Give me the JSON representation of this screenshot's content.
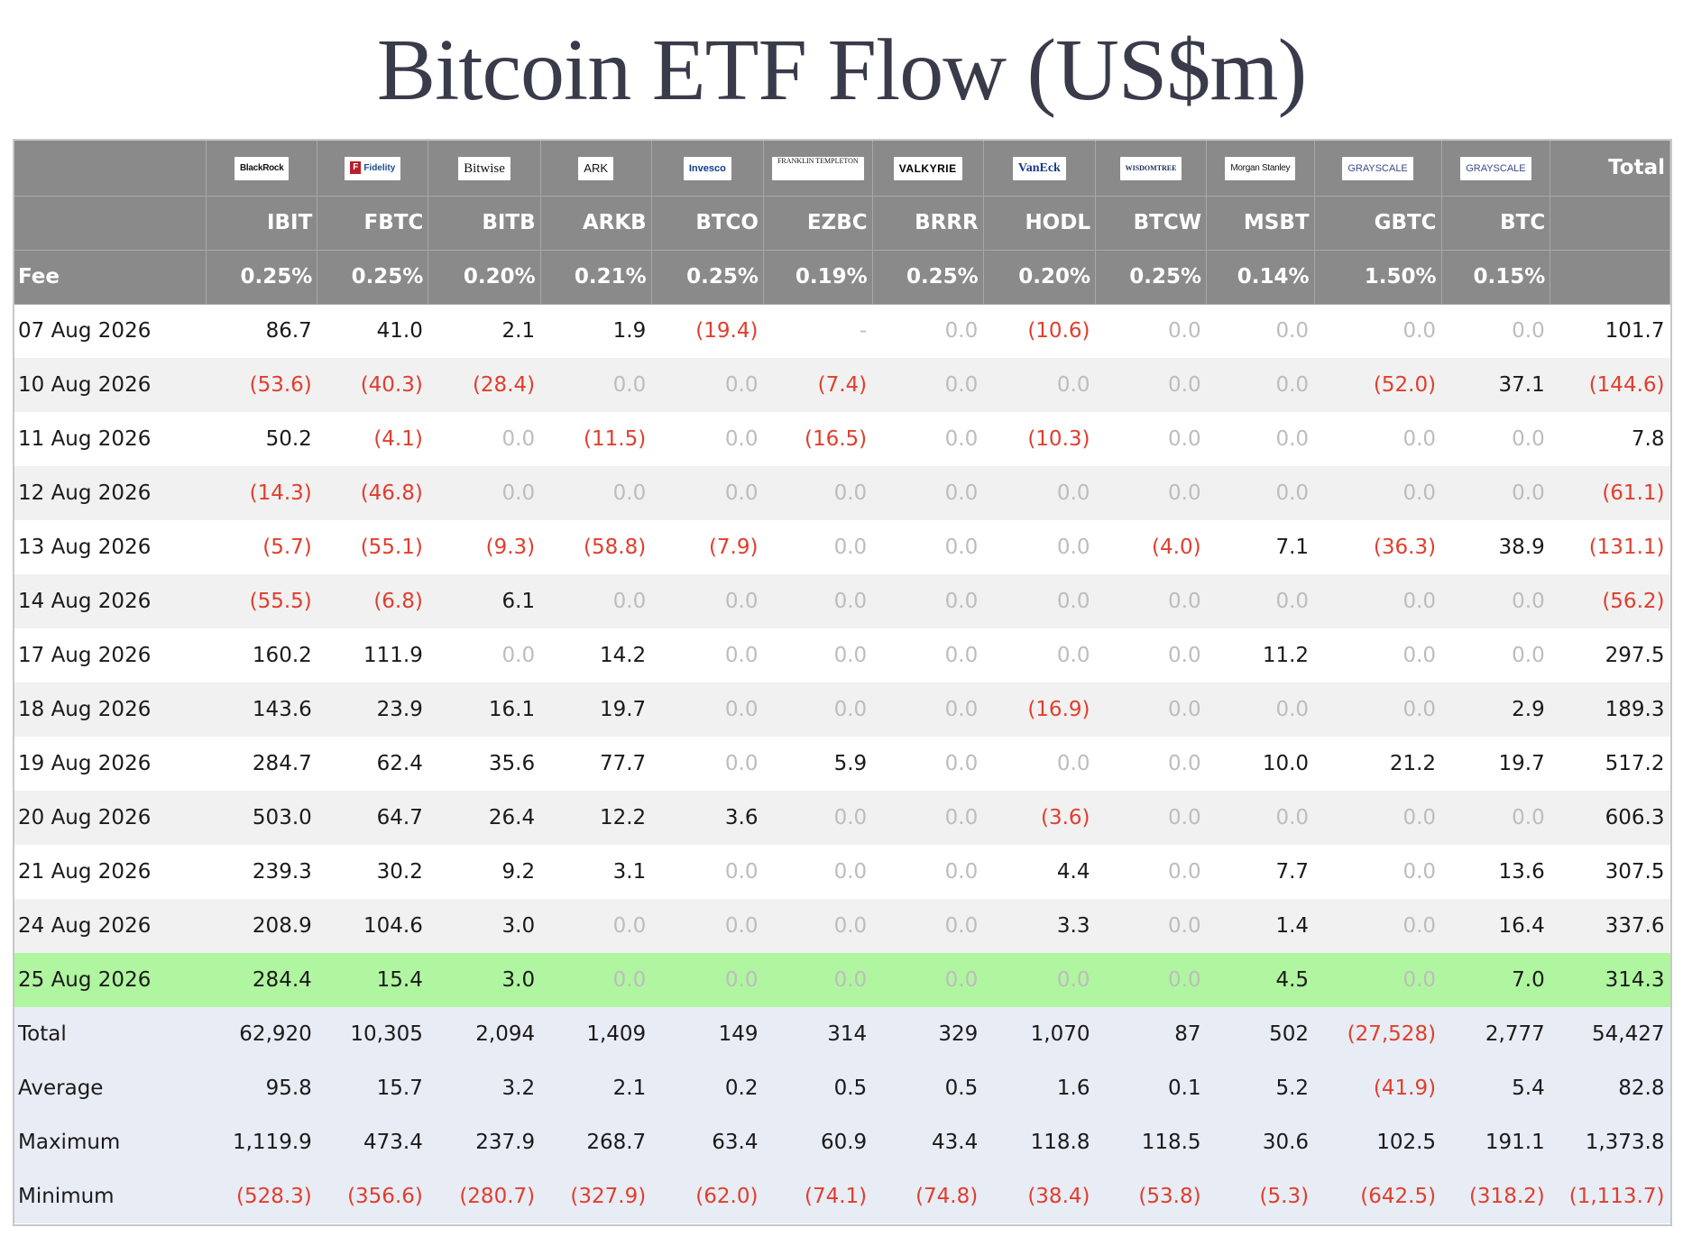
{
  "title": "Bitcoin ETF Flow (US$m)",
  "header": {
    "total_label": "Total",
    "fee_label": "Fee"
  },
  "issuers": [
    {
      "logo": "BlackRock",
      "ticker": "IBIT",
      "fee": "0.25%"
    },
    {
      "logo": "Fidelity",
      "ticker": "FBTC",
      "fee": "0.25%"
    },
    {
      "logo": "Bitwise",
      "ticker": "BITB",
      "fee": "0.20%"
    },
    {
      "logo": "ARK",
      "ticker": "ARKB",
      "fee": "0.21%"
    },
    {
      "logo": "Invesco",
      "ticker": "BTCO",
      "fee": "0.25%"
    },
    {
      "logo": "FRANKLIN TEMPLETON",
      "ticker": "EZBC",
      "fee": "0.19%"
    },
    {
      "logo": "VALKYRIE",
      "ticker": "BRRR",
      "fee": "0.25%"
    },
    {
      "logo": "VanEck",
      "ticker": "HODL",
      "fee": "0.20%"
    },
    {
      "logo": "WISDOMTREE",
      "ticker": "BTCW",
      "fee": "0.25%"
    },
    {
      "logo": "Morgan Stanley",
      "ticker": "MSBT",
      "fee": "0.14%"
    },
    {
      "logo": "GRAYSCALE",
      "ticker": "GBTC",
      "fee": "1.50%"
    },
    {
      "logo": "GRAYSCALE",
      "ticker": "BTC",
      "fee": "0.15%"
    }
  ],
  "chart_data": {
    "type": "table",
    "title": "Bitcoin ETF Flow (US$m)",
    "columns": [
      "",
      "IBIT",
      "FBTC",
      "BITB",
      "ARKB",
      "BTCO",
      "EZBC",
      "BRRR",
      "HODL",
      "BTCW",
      "MSBT",
      "GBTC",
      "BTC",
      "Total"
    ],
    "rows": [
      {
        "label": "07 Aug 2026",
        "cells": [
          "86.7",
          "41.0",
          "2.1",
          "1.9",
          "(19.4)",
          "-",
          "0.0",
          "(10.6)",
          "0.0",
          "0.0",
          "0.0",
          "0.0",
          "101.7"
        ]
      },
      {
        "label": "10 Aug 2026",
        "cells": [
          "(53.6)",
          "(40.3)",
          "(28.4)",
          "0.0",
          "0.0",
          "(7.4)",
          "0.0",
          "0.0",
          "0.0",
          "0.0",
          "(52.0)",
          "37.1",
          "(144.6)"
        ]
      },
      {
        "label": "11 Aug 2026",
        "cells": [
          "50.2",
          "(4.1)",
          "0.0",
          "(11.5)",
          "0.0",
          "(16.5)",
          "0.0",
          "(10.3)",
          "0.0",
          "0.0",
          "0.0",
          "0.0",
          "7.8"
        ]
      },
      {
        "label": "12 Aug 2026",
        "cells": [
          "(14.3)",
          "(46.8)",
          "0.0",
          "0.0",
          "0.0",
          "0.0",
          "0.0",
          "0.0",
          "0.0",
          "0.0",
          "0.0",
          "0.0",
          "(61.1)"
        ]
      },
      {
        "label": "13 Aug 2026",
        "cells": [
          "(5.7)",
          "(55.1)",
          "(9.3)",
          "(58.8)",
          "(7.9)",
          "0.0",
          "0.0",
          "0.0",
          "(4.0)",
          "7.1",
          "(36.3)",
          "38.9",
          "(131.1)"
        ]
      },
      {
        "label": "14 Aug 2026",
        "cells": [
          "(55.5)",
          "(6.8)",
          "6.1",
          "0.0",
          "0.0",
          "0.0",
          "0.0",
          "0.0",
          "0.0",
          "0.0",
          "0.0",
          "0.0",
          "(56.2)"
        ]
      },
      {
        "label": "17 Aug 2026",
        "cells": [
          "160.2",
          "111.9",
          "0.0",
          "14.2",
          "0.0",
          "0.0",
          "0.0",
          "0.0",
          "0.0",
          "11.2",
          "0.0",
          "0.0",
          "297.5"
        ]
      },
      {
        "label": "18 Aug 2026",
        "cells": [
          "143.6",
          "23.9",
          "16.1",
          "19.7",
          "0.0",
          "0.0",
          "0.0",
          "(16.9)",
          "0.0",
          "0.0",
          "0.0",
          "2.9",
          "189.3"
        ]
      },
      {
        "label": "19 Aug 2026",
        "cells": [
          "284.7",
          "62.4",
          "35.6",
          "77.7",
          "0.0",
          "5.9",
          "0.0",
          "0.0",
          "0.0",
          "10.0",
          "21.2",
          "19.7",
          "517.2"
        ]
      },
      {
        "label": "20 Aug 2026",
        "cells": [
          "503.0",
          "64.7",
          "26.4",
          "12.2",
          "3.6",
          "0.0",
          "0.0",
          "(3.6)",
          "0.0",
          "0.0",
          "0.0",
          "0.0",
          "606.3"
        ]
      },
      {
        "label": "21 Aug 2026",
        "cells": [
          "239.3",
          "30.2",
          "9.2",
          "3.1",
          "0.0",
          "0.0",
          "0.0",
          "4.4",
          "0.0",
          "7.7",
          "0.0",
          "13.6",
          "307.5"
        ]
      },
      {
        "label": "24 Aug 2026",
        "cells": [
          "208.9",
          "104.6",
          "3.0",
          "0.0",
          "0.0",
          "0.0",
          "0.0",
          "3.3",
          "0.0",
          "1.4",
          "0.0",
          "16.4",
          "337.6"
        ]
      },
      {
        "label": "25 Aug 2026",
        "highlight": true,
        "cells": [
          "284.4",
          "15.4",
          "3.0",
          "0.0",
          "0.0",
          "0.0",
          "0.0",
          "0.0",
          "0.0",
          "4.5",
          "0.0",
          "7.0",
          "314.3"
        ]
      }
    ],
    "stats": [
      {
        "label": "Total",
        "cells": [
          "62,920",
          "10,305",
          "2,094",
          "1,409",
          "149",
          "314",
          "329",
          "1,070",
          "87",
          "502",
          "(27,528)",
          "2,777",
          "54,427"
        ]
      },
      {
        "label": "Average",
        "cells": [
          "95.8",
          "15.7",
          "3.2",
          "2.1",
          "0.2",
          "0.5",
          "0.5",
          "1.6",
          "0.1",
          "5.2",
          "(41.9)",
          "5.4",
          "82.8"
        ]
      },
      {
        "label": "Maximum",
        "cells": [
          "1,119.9",
          "473.4",
          "237.9",
          "268.7",
          "63.4",
          "60.9",
          "43.4",
          "118.8",
          "118.5",
          "30.6",
          "102.5",
          "191.1",
          "1,373.8"
        ]
      },
      {
        "label": "Minimum",
        "cells": [
          "(528.3)",
          "(356.6)",
          "(280.7)",
          "(327.9)",
          "(62.0)",
          "(74.1)",
          "(74.8)",
          "(38.4)",
          "(53.8)",
          "(5.3)",
          "(642.5)",
          "(318.2)",
          "(1,113.7)"
        ]
      }
    ],
    "colors": {
      "header_bg": "#8a8a8a",
      "negative": "#e03e2d",
      "zero": "#bdbdbd",
      "highlight": "#b0f5a0",
      "stats_bg": "#e8ecf5",
      "stripe": "#f1f1f1"
    }
  }
}
